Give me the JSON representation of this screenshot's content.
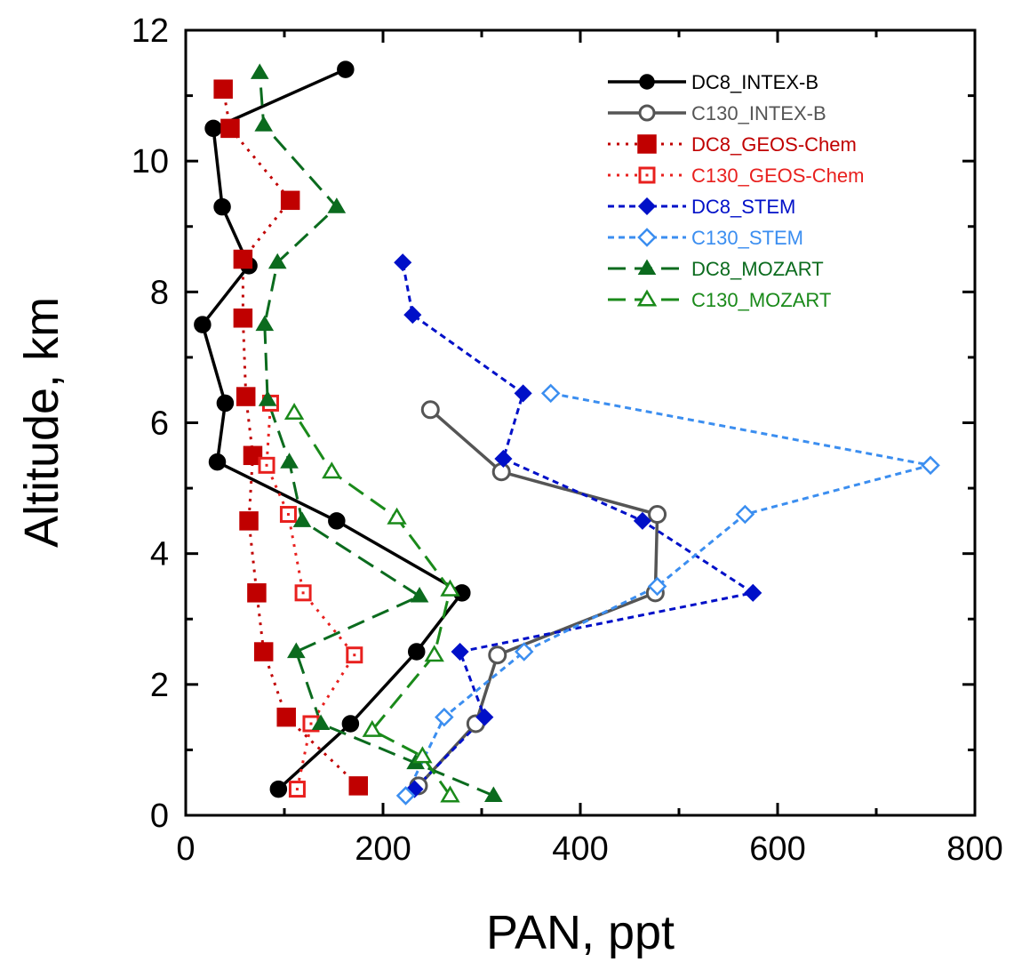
{
  "chart_data": {
    "type": "line",
    "title": "",
    "xlabel": "PAN, ppt",
    "ylabel": "Altitude, km",
    "xlim": [
      0,
      800
    ],
    "ylim": [
      0,
      12
    ],
    "xticks": [
      0,
      200,
      400,
      600,
      800
    ],
    "yticks": [
      0,
      2,
      4,
      6,
      8,
      10,
      12
    ],
    "grid": false,
    "legend_position": "top-right",
    "series": [
      {
        "name": "DC8_INTEX-B",
        "color": "#000000",
        "dash": "solid",
        "marker": "circle",
        "filled": true,
        "points": [
          [
            94,
            0.4
          ],
          [
            167,
            1.4
          ],
          [
            234,
            2.5
          ],
          [
            280,
            3.4
          ],
          [
            153,
            4.5
          ],
          [
            32,
            5.4
          ],
          [
            40,
            6.3
          ],
          [
            17,
            7.5
          ],
          [
            64,
            8.4
          ],
          [
            37,
            9.3
          ],
          [
            28,
            10.5
          ],
          [
            162,
            11.4
          ]
        ]
      },
      {
        "name": "C130_INTEX-B",
        "color": "#555555",
        "dash": "solid",
        "marker": "circle",
        "filled": false,
        "points": [
          [
            236,
            0.45
          ],
          [
            294,
            1.4
          ],
          [
            316,
            2.45
          ],
          [
            476,
            3.4
          ],
          [
            478,
            4.6
          ],
          [
            320,
            5.25
          ],
          [
            248,
            6.2
          ]
        ]
      },
      {
        "name": "DC8_GEOS-Chem",
        "color": "#c00000",
        "dash": "dot",
        "marker": "square",
        "filled": true,
        "points": [
          [
            175,
            0.45
          ],
          [
            102,
            1.5
          ],
          [
            79,
            2.5
          ],
          [
            72,
            3.4
          ],
          [
            64,
            4.5
          ],
          [
            68,
            5.5
          ],
          [
            61,
            6.4
          ],
          [
            58,
            7.6
          ],
          [
            58,
            8.5
          ],
          [
            106,
            9.4
          ],
          [
            45,
            10.5
          ],
          [
            38,
            11.1
          ]
        ]
      },
      {
        "name": "C130_GEOS-Chem",
        "color": "#e8201e",
        "dash": "dot",
        "marker": "square",
        "filled": false,
        "points": [
          [
            113,
            0.4
          ],
          [
            127,
            1.4
          ],
          [
            171,
            2.45
          ],
          [
            119,
            3.4
          ],
          [
            104,
            4.6
          ],
          [
            82,
            5.35
          ],
          [
            86,
            6.3
          ]
        ]
      },
      {
        "name": "DC8_STEM",
        "color": "#0010c8",
        "dash": "dash",
        "marker": "diamond",
        "filled": true,
        "points": [
          [
            232,
            0.4
          ],
          [
            303,
            1.5
          ],
          [
            278,
            2.5
          ],
          [
            575,
            3.4
          ],
          [
            463,
            4.5
          ],
          [
            322,
            5.45
          ],
          [
            342,
            6.45
          ],
          [
            230,
            7.65
          ],
          [
            220,
            8.45
          ]
        ]
      },
      {
        "name": "C130_STEM",
        "color": "#3b8ef0",
        "dash": "dash",
        "marker": "diamond",
        "filled": false,
        "points": [
          [
            223,
            0.3
          ],
          [
            262,
            1.5
          ],
          [
            343,
            2.5
          ],
          [
            478,
            3.5
          ],
          [
            567,
            4.6
          ],
          [
            755,
            5.35
          ],
          [
            370,
            6.45
          ]
        ]
      },
      {
        "name": "DC8_MOZART",
        "color": "#0b6b1e",
        "dash": "longdash",
        "marker": "triangle",
        "filled": true,
        "points": [
          [
            312,
            0.3
          ],
          [
            233,
            0.8
          ],
          [
            137,
            1.4
          ],
          [
            112,
            2.5
          ],
          [
            237,
            3.35
          ],
          [
            118,
            4.5
          ],
          [
            105,
            5.4
          ],
          [
            83,
            6.35
          ],
          [
            80,
            7.5
          ],
          [
            93,
            8.45
          ],
          [
            153,
            9.3
          ],
          [
            79,
            10.55
          ],
          [
            75,
            11.35
          ]
        ]
      },
      {
        "name": "C130_MOZART",
        "color": "#1a8a1a",
        "dash": "longdash",
        "marker": "triangle",
        "filled": false,
        "points": [
          [
            268,
            0.3
          ],
          [
            240,
            0.9
          ],
          [
            189,
            1.3
          ],
          [
            252,
            2.45
          ],
          [
            268,
            3.45
          ],
          [
            214,
            4.55
          ],
          [
            148,
            5.25
          ],
          [
            110,
            6.15
          ]
        ]
      }
    ]
  }
}
